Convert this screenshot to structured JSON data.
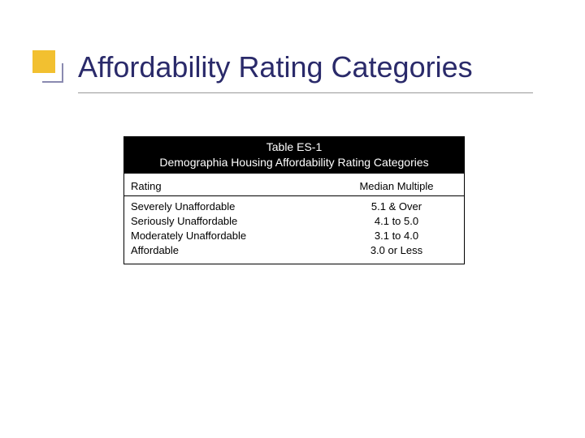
{
  "title": "Affordability Rating Categories",
  "table": {
    "header_line1": "Table ES-1",
    "header_line2": "Demographia Housing Affordability Rating Categories",
    "columns": [
      "Rating",
      "Median Multiple"
    ],
    "rows": [
      {
        "rating": "Severely Unaffordable",
        "multiple": "5.1 & Over"
      },
      {
        "rating": "Seriously Unaffordable",
        "multiple": "4.1 to 5.0"
      },
      {
        "rating": "Moderately Unaffordable",
        "multiple": "3.1 to 4.0"
      },
      {
        "rating": "Affordable",
        "multiple": "3.0 or Less"
      }
    ],
    "styling": {
      "header_bg": "#000000",
      "header_text_color": "#ffffff",
      "body_bg": "#ffffff",
      "body_text_color": "#000000",
      "border_color": "#000000",
      "font_size_header": 14,
      "font_size_body": 13,
      "col_right_width": 150
    }
  },
  "decoration": {
    "square_color": "#f2c030",
    "line_color": "#8a8ab0"
  }
}
